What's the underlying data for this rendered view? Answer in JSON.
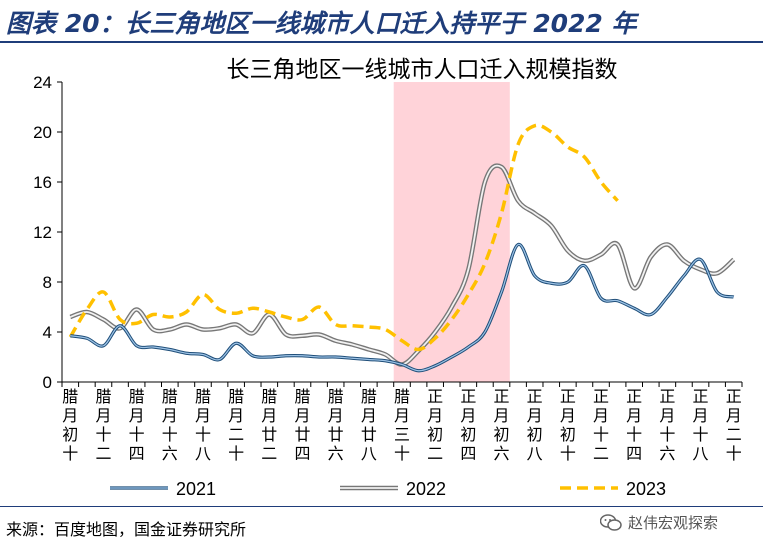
{
  "header": {
    "title": "图表 20：长三角地区一线城市人口迁入持平于 2022 年"
  },
  "footer": {
    "source": "来源：百度地图，国金证券研究所",
    "watermark": "赵伟宏观探索"
  },
  "colors": {
    "s2021": "#2e74b5",
    "s2022": "#a6a6a6",
    "s2023": "#ffc000",
    "shade": "#ffd3d9",
    "header": "#1f3d7a"
  },
  "chart_data": {
    "type": "line",
    "title": "长三角地区一线城市人口迁入规模指数",
    "x_count": 41,
    "ylim": [
      0,
      24
    ],
    "yticks": [
      0,
      4,
      8,
      12,
      16,
      20,
      24
    ],
    "shaded_range": [
      21,
      27
    ],
    "xtick_labels": [
      {
        "i": 1,
        "label": "腊月初十"
      },
      {
        "i": 3,
        "label": "腊月十二"
      },
      {
        "i": 5,
        "label": "腊月十四"
      },
      {
        "i": 7,
        "label": "腊月十六"
      },
      {
        "i": 9,
        "label": "腊月十八"
      },
      {
        "i": 11,
        "label": "腊月二十"
      },
      {
        "i": 13,
        "label": "腊月廿二"
      },
      {
        "i": 15,
        "label": "腊月廿四"
      },
      {
        "i": 17,
        "label": "腊月廿六"
      },
      {
        "i": 19,
        "label": "腊月廿八"
      },
      {
        "i": 21,
        "label": "腊月三十"
      },
      {
        "i": 23,
        "label": "正月初二"
      },
      {
        "i": 25,
        "label": "正月初四"
      },
      {
        "i": 27,
        "label": "正月初六"
      },
      {
        "i": 29,
        "label": "正月初八"
      },
      {
        "i": 31,
        "label": "正月初十"
      },
      {
        "i": 33,
        "label": "正月十二"
      },
      {
        "i": 35,
        "label": "正月十四"
      },
      {
        "i": 37,
        "label": "正月十六"
      },
      {
        "i": 39,
        "label": "正月十八"
      },
      {
        "i": 41,
        "label": "正月二十"
      }
    ],
    "series": [
      {
        "name": "2021",
        "key": "s2021",
        "width": 2,
        "dash": "",
        "values": [
          3.7,
          3.5,
          2.9,
          4.5,
          2.9,
          2.8,
          2.6,
          2.3,
          2.2,
          1.8,
          3.1,
          2.1,
          2.0,
          2.1,
          2.1,
          2.0,
          2.0,
          1.9,
          1.8,
          1.7,
          1.4,
          0.9,
          1.3,
          2.0,
          2.8,
          4.0,
          7.2,
          11.0,
          8.5,
          7.9,
          8.0,
          9.3,
          6.7,
          6.5,
          5.9,
          5.4,
          6.8,
          8.5,
          9.8,
          7.2,
          6.8
        ]
      },
      {
        "name": "2022",
        "key": "s2022",
        "width": 3,
        "dash": "",
        "values": [
          5.2,
          5.6,
          5.0,
          4.3,
          5.8,
          4.2,
          4.2,
          4.6,
          4.2,
          4.3,
          4.6,
          3.9,
          5.4,
          3.8,
          3.7,
          3.8,
          3.3,
          3.0,
          2.6,
          2.2,
          1.4,
          2.5,
          4.0,
          6.0,
          9.0,
          16.0,
          17.2,
          14.5,
          13.5,
          12.5,
          10.5,
          9.7,
          10.2,
          11.0,
          7.5,
          10.0,
          11.0,
          9.7,
          9.0,
          8.7,
          9.8
        ]
      },
      {
        "name": "2023",
        "key": "s2023",
        "width": 3.5,
        "dash": "11,6",
        "values": [
          3.6,
          5.8,
          7.2,
          5.0,
          4.7,
          5.4,
          5.2,
          5.6,
          7.0,
          5.8,
          5.5,
          5.9,
          5.6,
          5.2,
          5.0,
          6.0,
          4.6,
          4.5,
          4.4,
          4.2,
          3.3,
          2.6,
          3.5,
          5.0,
          7.0,
          9.5,
          13.5,
          19.0,
          20.5,
          20.0,
          18.8,
          18.0,
          16.0,
          14.5,
          null,
          null,
          null,
          null,
          null,
          null,
          null
        ]
      }
    ],
    "legend": [
      {
        "name": "2021",
        "key": "s2021"
      },
      {
        "name": "2022",
        "key": "s2022"
      },
      {
        "name": "2023",
        "key": "s2023"
      }
    ]
  }
}
